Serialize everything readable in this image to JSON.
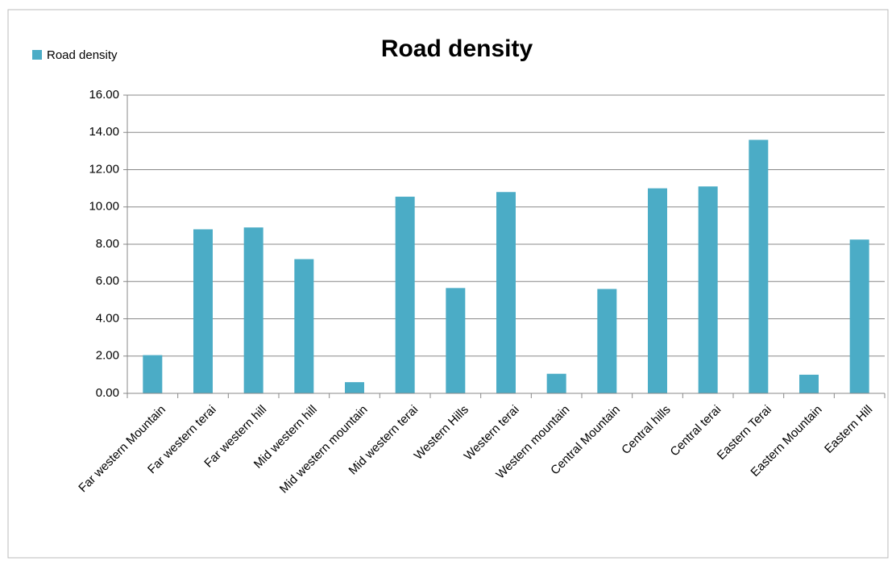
{
  "chart_data": {
    "type": "bar",
    "title": "Road density",
    "categories": [
      "Far western Mountain",
      "Far western terai",
      "Far western hill",
      "Mid western hill",
      "Mid western mountain",
      "Mid western terai",
      "Western Hills",
      "Western terai",
      "Western mountain",
      "Central Mountain",
      "Central hills",
      "Central terai",
      "Eastern Terai",
      "Eastern Mountain",
      "Eastern Hill"
    ],
    "series": [
      {
        "name": "Road density",
        "color": "#4bacc6",
        "values": [
          2.05,
          8.8,
          8.9,
          7.2,
          0.6,
          10.55,
          5.65,
          10.8,
          1.05,
          5.6,
          11.0,
          11.1,
          13.6,
          1.0,
          8.25
        ]
      }
    ],
    "ylim": [
      0,
      16
    ],
    "yticks": [
      {
        "value": 0,
        "label": "0.00"
      },
      {
        "value": 2,
        "label": "2.00"
      },
      {
        "value": 4,
        "label": "4.00"
      },
      {
        "value": 6,
        "label": "6.00"
      },
      {
        "value": 8,
        "label": "8.00"
      },
      {
        "value": 10,
        "label": "10.00"
      },
      {
        "value": 12,
        "label": "12.00"
      },
      {
        "value": 14,
        "label": "14.00"
      },
      {
        "value": 16,
        "label": "16.00"
      }
    ],
    "grid": true,
    "legend": "top-left"
  }
}
